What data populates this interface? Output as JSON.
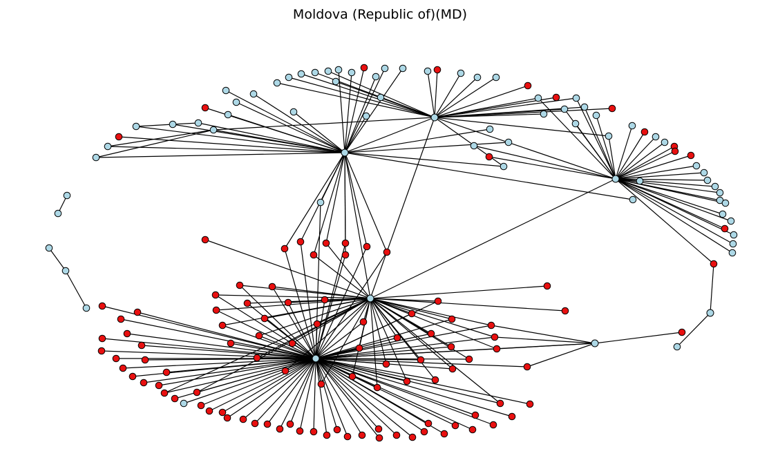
{
  "title": "Moldova (Republic of)(MD)",
  "graph": {
    "colors": {
      "blue_nodes": "#add8e6",
      "red_nodes": "#e81010",
      "edges": "#000000"
    },
    "hub_count": 7,
    "node_counts": {
      "blue": 78,
      "red": 112
    }
  }
}
